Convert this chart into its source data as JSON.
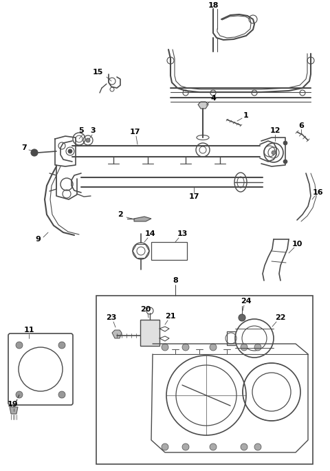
{
  "bg_color": "#ffffff",
  "line_color": "#4a4a4a",
  "text_color": "#000000",
  "fig_width": 4.8,
  "fig_height": 6.85,
  "dpi": 100
}
